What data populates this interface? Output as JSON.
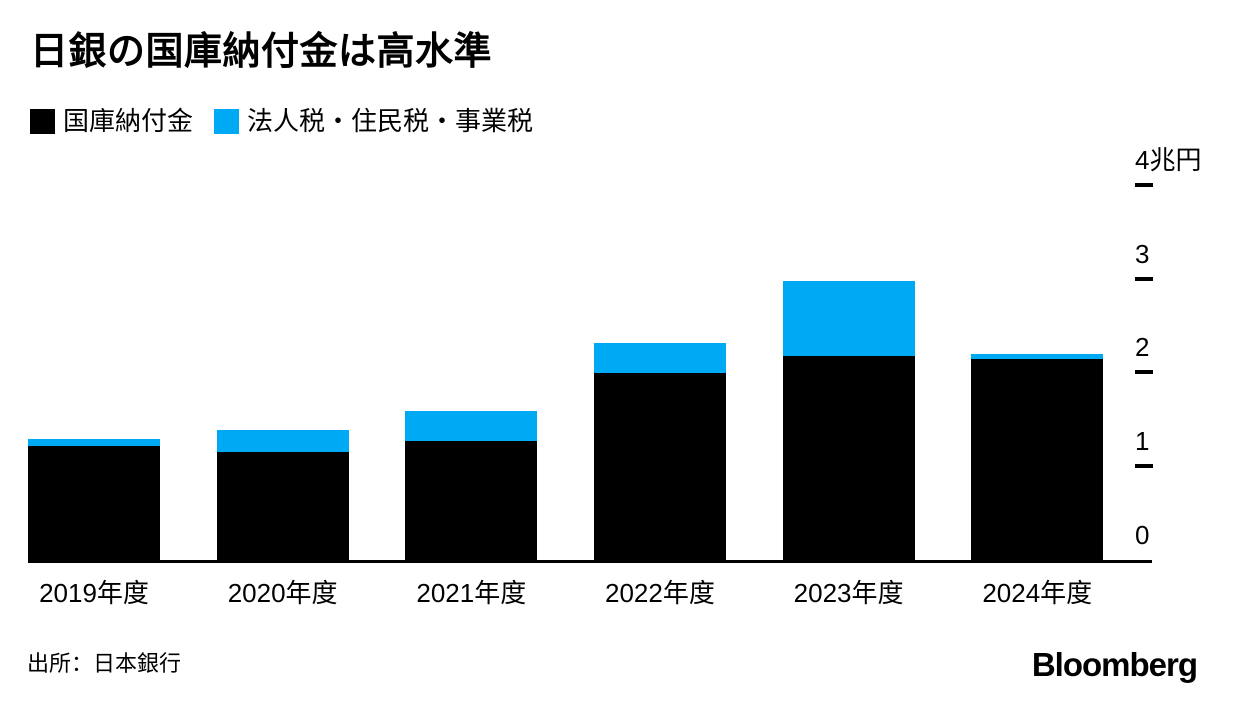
{
  "chart_data": {
    "type": "bar",
    "stacked": true,
    "title": "日銀の国庫納付金は高水準",
    "categories": [
      "2019年度",
      "2020年度",
      "2021年度",
      "2022年度",
      "2023年度",
      "2024年度"
    ],
    "series": [
      {
        "name": "国庫納付金",
        "color": "#000000",
        "values": [
          1.22,
          1.15,
          1.27,
          1.99,
          2.18,
          2.14
        ]
      },
      {
        "name": "法人税・住民税・事業税",
        "color": "#00a9f4",
        "values": [
          0.07,
          0.24,
          0.32,
          0.32,
          0.79,
          0.06
        ]
      }
    ],
    "y_axis": {
      "unit": "兆円",
      "ylim": [
        0,
        4.3
      ],
      "ticks": [
        {
          "label": "4兆円",
          "value": 4,
          "dash": true
        },
        {
          "label": "3",
          "value": 3,
          "dash": true
        },
        {
          "label": "2",
          "value": 2,
          "dash": true
        },
        {
          "label": "1",
          "value": 1,
          "dash": true
        },
        {
          "label": "0",
          "value": 0,
          "dash": false
        }
      ],
      "position": "right"
    },
    "grid": false,
    "legend_position": "top-left"
  },
  "footer": {
    "source": "出所：日本銀行",
    "brand": "Bloomberg"
  }
}
